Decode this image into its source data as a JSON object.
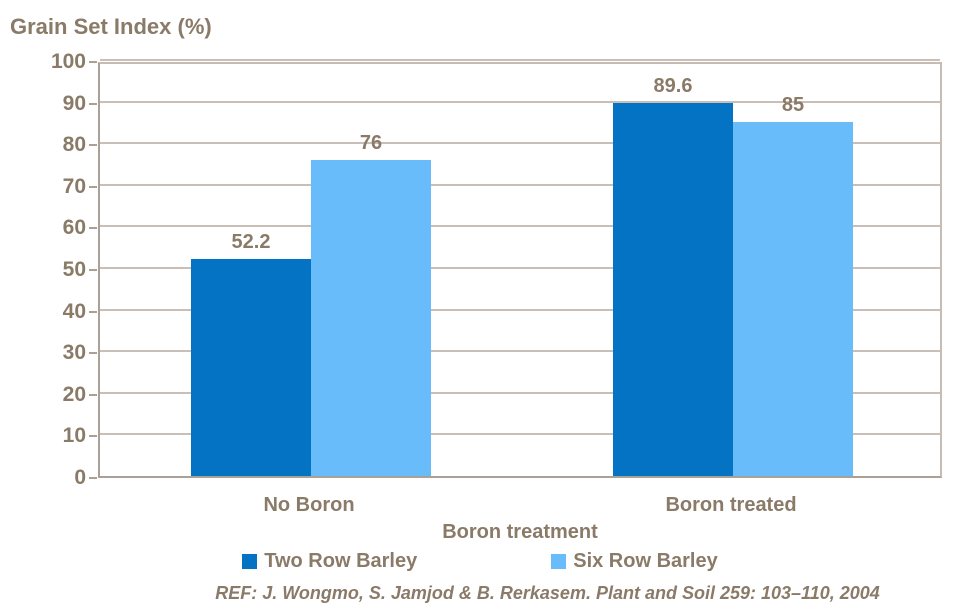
{
  "chart_data": {
    "type": "bar",
    "title": "Grain Set Index (%)",
    "categories": [
      "No Boron",
      "Boron treated"
    ],
    "series": [
      {
        "name": "Two Row Barley",
        "color": "#0473c3",
        "values": [
          52.2,
          89.6
        ]
      },
      {
        "name": "Six Row Barley",
        "color": "#68bcfa",
        "values": [
          76,
          85
        ]
      }
    ],
    "value_labels": [
      [
        "52.2",
        "89.6"
      ],
      [
        "76",
        "85"
      ]
    ],
    "xlabel": "Boron treatment",
    "ylabel": "Grain Set Index (%)",
    "ylim": [
      0,
      100
    ],
    "ytick_step": 10,
    "grid": "horizontal",
    "legend_position": "bottom",
    "reference": "REF: J. Wongmo, S. Jamjod & B. Rerkasem. Plant and Soil 259: 103–110, 2004"
  },
  "colors": {
    "text": "#8a7a68",
    "gridline": "#c9bfb7",
    "axis": "#aba095",
    "plot_border": "#c6bcb4",
    "background": "#ffffff",
    "series_two_row": "#0473c3",
    "series_six_row": "#68bcfa"
  }
}
